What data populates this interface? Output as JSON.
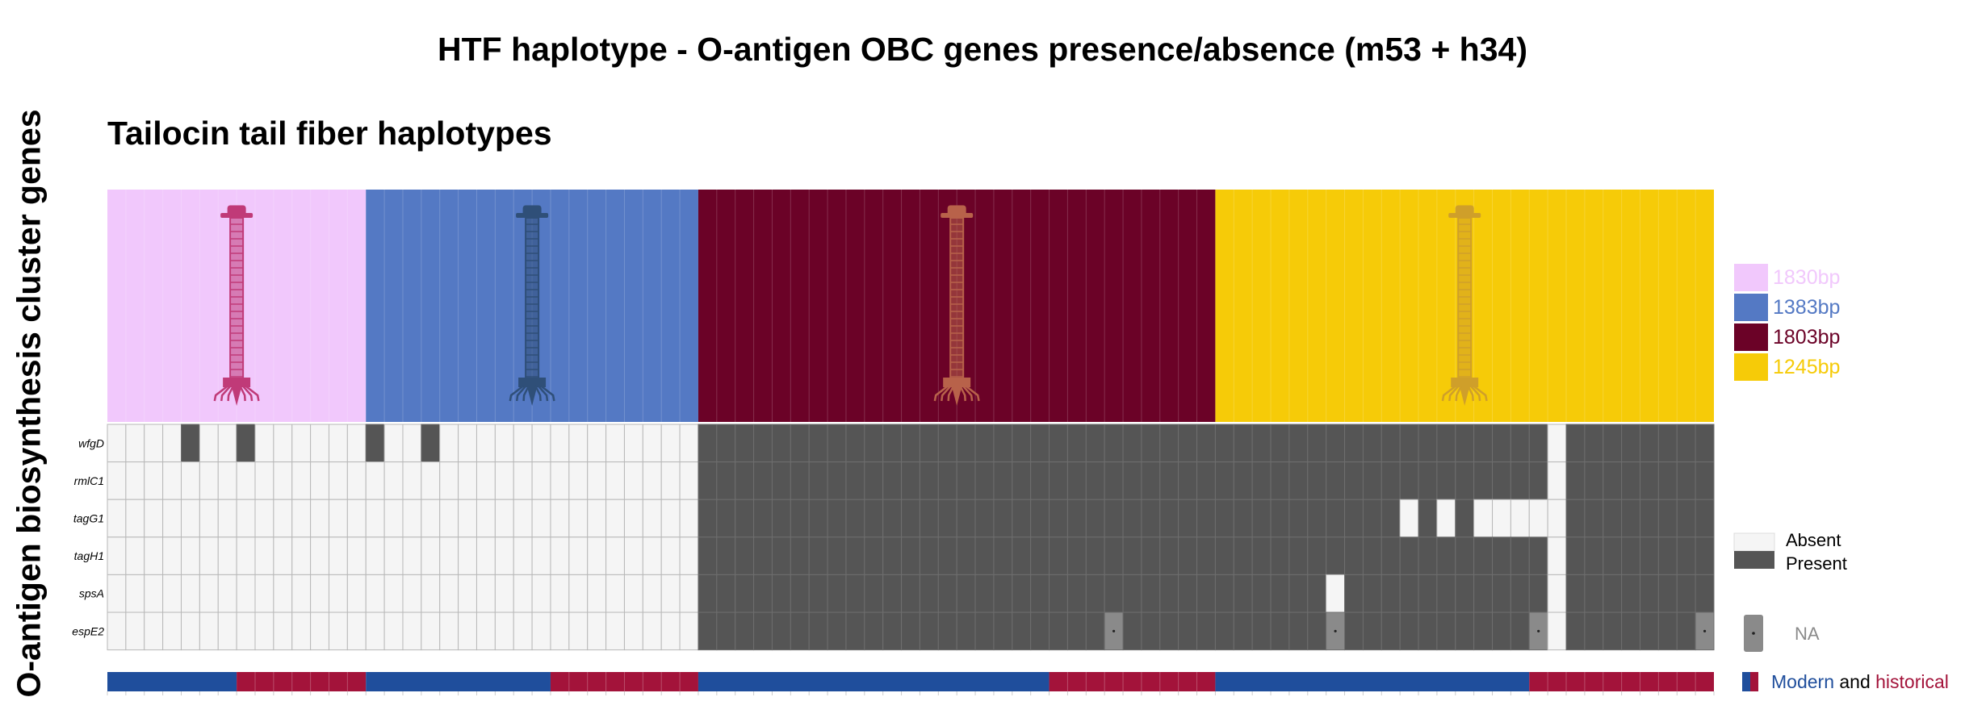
{
  "chart_data": {
    "type": "heatmap",
    "title": "HTF haplotype - O-antigen OBC genes presence/absence (m53 + h34)",
    "subtitle": "Tailocin tail fiber haplotypes",
    "ylabel": "O-antigen biosynthesis cluster genes",
    "genes": [
      "wfgD",
      "rmlC1",
      "tagG1",
      "tagH1",
      "spsA",
      "espE2"
    ],
    "n_columns": 87,
    "haplotypes": [
      {
        "label": "1830bp",
        "color": "#f1c8fc",
        "icon_color": "#c03a78",
        "columns": 14,
        "origin_blocks": [
          [
            "modern",
            7
          ],
          [
            "historical",
            7
          ]
        ]
      },
      {
        "label": "1383bp",
        "color": "#5479c4",
        "icon_color": "#2f4f78",
        "columns": 18,
        "origin_blocks": [
          [
            "modern",
            10
          ],
          [
            "historical",
            8
          ]
        ]
      },
      {
        "label": "1803bp",
        "color": "#6b0227",
        "icon_color": "#b8624a",
        "columns": 28,
        "origin_blocks": [
          [
            "modern",
            19
          ],
          [
            "historical",
            9
          ]
        ]
      },
      {
        "label": "1245bp",
        "color": "#f6cb08",
        "icon_color": "#cf9f2a",
        "columns": 27,
        "origin_blocks": [
          [
            "modern",
            17
          ],
          [
            "historical",
            10
          ]
        ]
      }
    ],
    "status_colors": {
      "absent": "#f5f5f5",
      "present": "#555555",
      "na": "#8a8a8a"
    },
    "origin_colors": {
      "modern": "#1f4e9c",
      "historical": "#a3133a"
    },
    "present_default_by_haplotype": [
      false,
      false,
      true,
      true
    ],
    "overrides": [
      {
        "gene": "wfgD",
        "col": 4,
        "status": "present"
      },
      {
        "gene": "wfgD",
        "col": 7,
        "status": "present"
      },
      {
        "gene": "wfgD",
        "col": 14,
        "status": "present"
      },
      {
        "gene": "wfgD",
        "col": 17,
        "status": "present"
      },
      {
        "gene": "wfgD",
        "col": 78,
        "status": "absent"
      },
      {
        "gene": "rmlC1",
        "col": 78,
        "status": "absent"
      },
      {
        "gene": "tagG1",
        "col": 70,
        "status": "absent"
      },
      {
        "gene": "tagG1",
        "col": 72,
        "status": "absent"
      },
      {
        "gene": "tagG1",
        "col": 74,
        "status": "absent"
      },
      {
        "gene": "tagG1",
        "col": 75,
        "status": "absent"
      },
      {
        "gene": "tagG1",
        "col": 76,
        "status": "absent"
      },
      {
        "gene": "tagG1",
        "col": 77,
        "status": "absent"
      },
      {
        "gene": "tagG1",
        "col": 78,
        "status": "absent"
      },
      {
        "gene": "tagH1",
        "col": 78,
        "status": "absent"
      },
      {
        "gene": "spsA",
        "col": 66,
        "status": "absent"
      },
      {
        "gene": "spsA",
        "col": 78,
        "status": "absent"
      },
      {
        "gene": "espE2",
        "col": 54,
        "status": "na"
      },
      {
        "gene": "espE2",
        "col": 66,
        "status": "na"
      },
      {
        "gene": "espE2",
        "col": 77,
        "status": "na"
      },
      {
        "gene": "espE2",
        "col": 78,
        "status": "absent"
      },
      {
        "gene": "espE2",
        "col": 86,
        "status": "na"
      }
    ],
    "legend": {
      "absent": "Absent",
      "present": "Present",
      "na": "NA",
      "modern": "Modern",
      "and": "and",
      "historical": "historical"
    }
  }
}
